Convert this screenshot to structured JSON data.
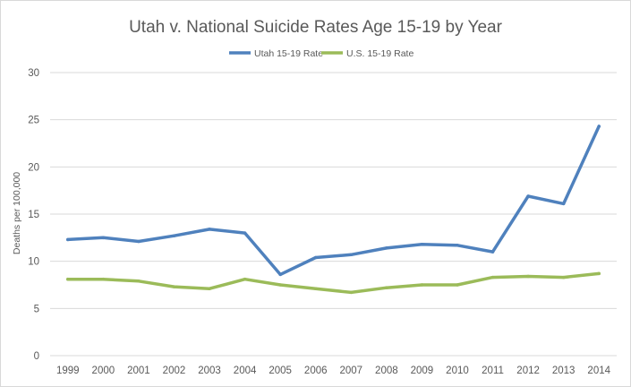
{
  "chart_data": {
    "type": "line",
    "title": "Utah v. National Suicide Rates Age 15-19 by Year",
    "xlabel": "",
    "ylabel": "Deaths per 100,000",
    "categories": [
      "1999",
      "2000",
      "2001",
      "2002",
      "2003",
      "2004",
      "2005",
      "2006",
      "2007",
      "2008",
      "2009",
      "2010",
      "2011",
      "2012",
      "2013",
      "2014"
    ],
    "series": [
      {
        "name": "Utah 15-19 Rate",
        "color": "#4f81bd",
        "values": [
          12.3,
          12.5,
          12.1,
          12.7,
          13.4,
          13.0,
          8.6,
          10.4,
          10.7,
          11.4,
          11.8,
          11.7,
          11.0,
          16.9,
          16.1,
          24.3
        ]
      },
      {
        "name": "U.S. 15-19 Rate",
        "color": "#9bbb59",
        "values": [
          8.1,
          8.1,
          7.9,
          7.3,
          7.1,
          8.1,
          7.5,
          7.1,
          6.7,
          7.2,
          7.5,
          7.5,
          8.3,
          8.4,
          8.3,
          8.7
        ]
      }
    ],
    "yticks": [
      "0",
      "5",
      "10",
      "15",
      "20",
      "25",
      "30"
    ],
    "ylim": [
      0,
      30
    ],
    "grid": true,
    "legend_position": "top-center"
  }
}
